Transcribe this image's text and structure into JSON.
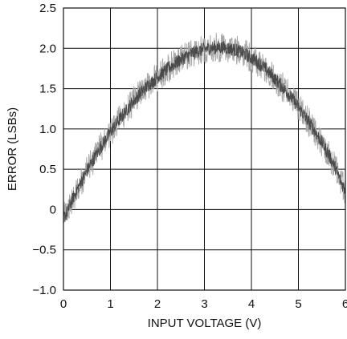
{
  "chart_data": {
    "type": "line",
    "title": "",
    "xlabel": "INPUT VOLTAGE (V)",
    "ylabel": "ERROR (LSBs)",
    "xlim": [
      0,
      6
    ],
    "ylim": [
      -1.0,
      2.5
    ],
    "x_ticks": [
      0,
      1,
      2,
      3,
      4,
      5,
      6
    ],
    "x_tick_labels": [
      "0",
      "1",
      "2",
      "3",
      "4",
      "5",
      "6"
    ],
    "y_ticks": [
      -1.0,
      -0.5,
      0,
      0.5,
      1.0,
      1.5,
      2.0,
      2.5
    ],
    "y_tick_labels": [
      "−1.0",
      "−0.5",
      "0",
      "0.5",
      "1.0",
      "1.5",
      "2.0",
      "2.5"
    ],
    "grid": true,
    "noise_band_lsb": 0.15,
    "series": [
      {
        "color": "#4a4a4a",
        "band_color": "#a8a8a8",
        "x": [
          0,
          0.25,
          0.5,
          0.75,
          1.0,
          1.25,
          1.5,
          1.75,
          2.0,
          2.25,
          2.5,
          2.75,
          3.0,
          3.25,
          3.5,
          3.75,
          4.0,
          4.25,
          4.5,
          4.75,
          5.0,
          5.25,
          5.5,
          5.75,
          6.0
        ],
        "y": [
          -0.1,
          0.2,
          0.48,
          0.73,
          0.96,
          1.16,
          1.35,
          1.51,
          1.64,
          1.76,
          1.86,
          1.94,
          1.99,
          2.01,
          2.0,
          1.96,
          1.88,
          1.77,
          1.62,
          1.46,
          1.27,
          1.06,
          0.83,
          0.56,
          0.25
        ]
      }
    ]
  }
}
